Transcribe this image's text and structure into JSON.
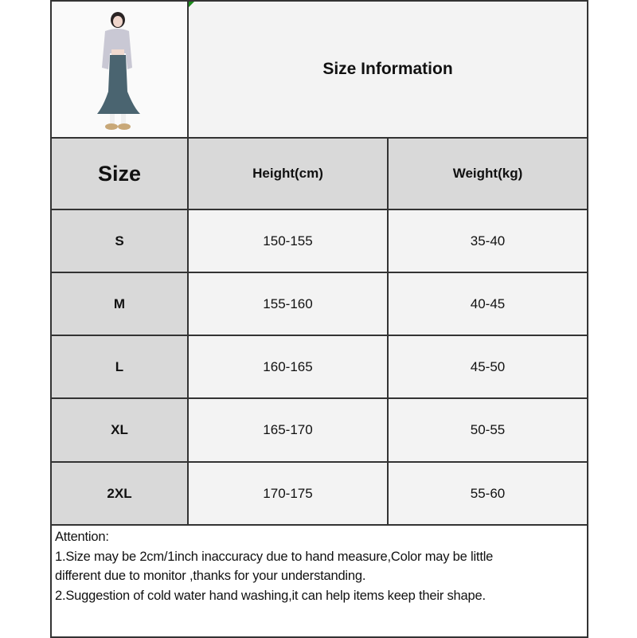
{
  "title": "Size Information",
  "table": {
    "headers": [
      "Size",
      "Height(cm)",
      "Weight(kg)"
    ],
    "rows": [
      [
        "S",
        "150-155",
        "35-40"
      ],
      [
        "M",
        "155-160",
        "40-45"
      ],
      [
        "L",
        "160-165",
        "45-50"
      ],
      [
        "XL",
        "165-170",
        "50-55"
      ],
      [
        "2XL",
        "170-175",
        "55-60"
      ]
    ]
  },
  "notes": {
    "heading": "Attention:",
    "line1a": "1.Size may be 2cm/1inch inaccuracy due to hand measure,Color may be little",
    "line1b": "different due to monitor ,thanks for your understanding.",
    "line2": "2.Suggestion of cold water hand washing,it can help items keep their shape."
  },
  "colors": {
    "header_bg": "#d9d9d9",
    "cell_bg": "#f3f3f3",
    "border": "#333333",
    "skirt": "#4a6470"
  }
}
